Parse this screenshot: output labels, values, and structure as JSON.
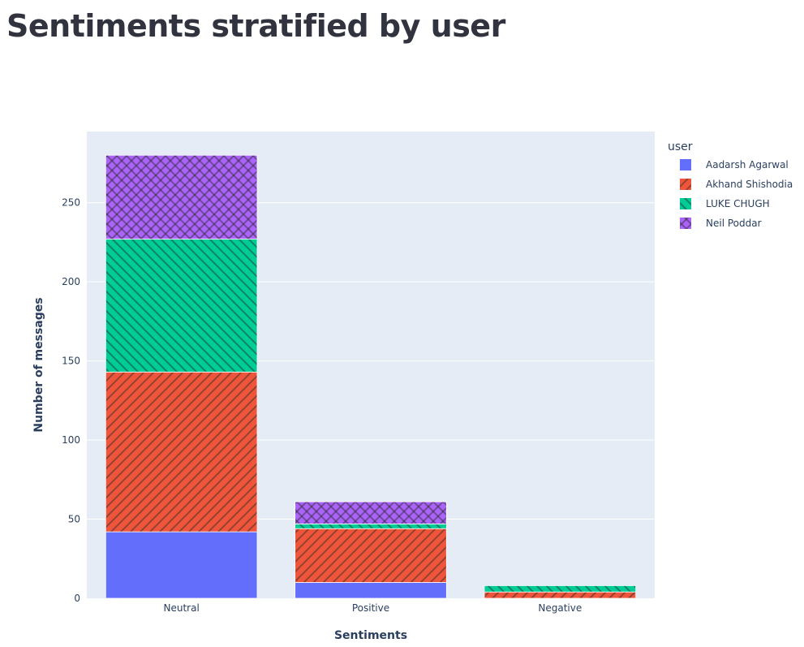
{
  "page": {
    "title": "Sentiments stratified by user"
  },
  "chart_data": {
    "type": "bar",
    "barmode": "stack",
    "categories": [
      "Neutral",
      "Positive",
      "Negative"
    ],
    "series": [
      {
        "name": "Aadarsh Agarwal",
        "values": [
          42,
          10,
          0
        ],
        "color": "#636efa",
        "pattern": "none"
      },
      {
        "name": "Akhand Shishodia",
        "values": [
          101,
          34,
          4
        ],
        "color": "#ef553b",
        "pattern": "forward-slash"
      },
      {
        "name": "LUKE CHUGH",
        "values": [
          84,
          3,
          4
        ],
        "color": "#00cc96",
        "pattern": "back-slash"
      },
      {
        "name": "Neil Poddar",
        "values": [
          53,
          14,
          0
        ],
        "color": "#ab63fa",
        "pattern": "cross-hatch"
      }
    ],
    "xlabel": "Sentiments",
    "ylabel": "Number of messages",
    "ylim": [
      0,
      295
    ],
    "yticks": [
      0,
      50,
      100,
      150,
      200,
      250
    ],
    "grid": true,
    "legend": {
      "title": "user",
      "position": "top-right"
    },
    "plot_background": "#e5ecf6"
  }
}
